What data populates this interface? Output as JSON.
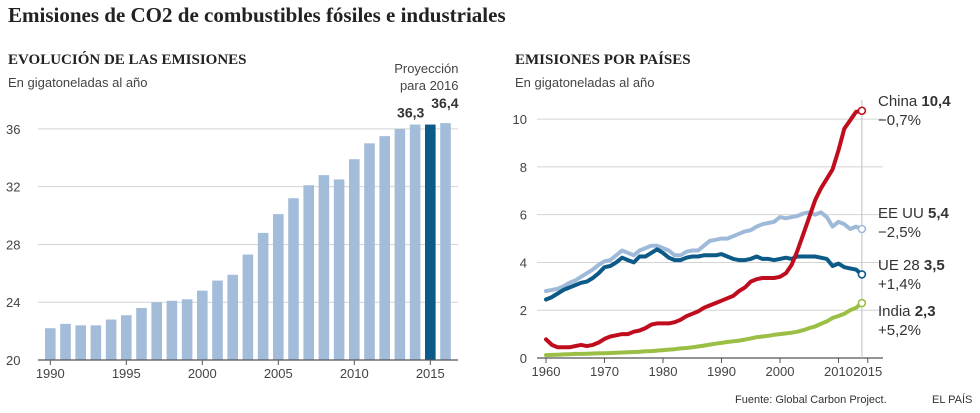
{
  "title": "Emisiones de CO2 de combustibles fósiles e industriales",
  "footer": {
    "source": "Fuente: Global Carbon Project.",
    "brand": "EL PAÍS"
  },
  "colors": {
    "bar": "#a3bcda",
    "bar_highlight": "#0b5a87",
    "grid": "#d4d4d4",
    "axis": "#555555",
    "label": "#444444"
  },
  "chart_data": [
    {
      "type": "bar",
      "title": "EVOLUCIÓN DE LAS EMISIONES",
      "subtitle": "En gigatoneladas al año",
      "x": [
        1990,
        1991,
        1992,
        1993,
        1994,
        1995,
        1996,
        1997,
        1998,
        1999,
        2000,
        2001,
        2002,
        2003,
        2004,
        2005,
        2006,
        2007,
        2008,
        2009,
        2010,
        2011,
        2012,
        2013,
        2014,
        2015,
        2016
      ],
      "values": [
        22.2,
        22.5,
        22.4,
        22.4,
        22.8,
        23.1,
        23.6,
        24.0,
        24.1,
        24.2,
        24.8,
        25.5,
        25.9,
        27.3,
        28.8,
        30.1,
        31.2,
        32.1,
        32.8,
        32.5,
        33.9,
        35.0,
        35.5,
        36.0,
        36.3,
        36.3,
        36.4
      ],
      "highlight_x": 2015,
      "ylim": [
        20,
        38
      ],
      "yticks": [
        20,
        24,
        28,
        32,
        36
      ],
      "xticks": [
        1990,
        1995,
        2000,
        2005,
        2010,
        2015
      ],
      "grid": true,
      "annotations": {
        "value_2015": "36,3",
        "projection_line1": "Proyección",
        "projection_line2": "para 2016",
        "value_2016": "36,4"
      }
    },
    {
      "type": "line",
      "title": "EMISIONES POR PAÍSES",
      "subtitle": "En gigatoneladas al año",
      "x": [
        1960,
        1961,
        1962,
        1963,
        1964,
        1965,
        1966,
        1967,
        1968,
        1969,
        1970,
        1971,
        1972,
        1973,
        1974,
        1975,
        1976,
        1977,
        1978,
        1979,
        1980,
        1981,
        1982,
        1983,
        1984,
        1985,
        1986,
        1987,
        1988,
        1989,
        1990,
        1991,
        1992,
        1993,
        1994,
        1995,
        1996,
        1997,
        1998,
        1999,
        2000,
        2001,
        2002,
        2003,
        2004,
        2005,
        2006,
        2007,
        2008,
        2009,
        2010,
        2011,
        2012,
        2013,
        2014
      ],
      "ylim": [
        0,
        10.8
      ],
      "yticks": [
        0,
        2,
        4,
        6,
        8,
        10
      ],
      "xticks": [
        1960,
        1970,
        1980,
        1990,
        2000,
        2010,
        2015
      ],
      "grid": true,
      "series": [
        {
          "name": "EE UU",
          "value": "5,4",
          "change": "−2,5%",
          "color": "#9fbad8",
          "values": [
            2.8,
            2.85,
            2.9,
            3.0,
            3.15,
            3.25,
            3.4,
            3.55,
            3.7,
            3.9,
            4.05,
            4.1,
            4.3,
            4.5,
            4.4,
            4.3,
            4.5,
            4.6,
            4.7,
            4.7,
            4.6,
            4.5,
            4.3,
            4.3,
            4.45,
            4.5,
            4.5,
            4.7,
            4.9,
            4.95,
            5.0,
            5.0,
            5.1,
            5.2,
            5.3,
            5.35,
            5.5,
            5.6,
            5.65,
            5.7,
            5.9,
            5.85,
            5.9,
            5.95,
            6.05,
            6.1,
            6.0,
            6.1,
            5.9,
            5.5,
            5.7,
            5.6,
            5.4,
            5.5,
            5.4
          ]
        },
        {
          "name": "UE 28",
          "value": "3,5",
          "change": "+1,4%",
          "color": "#0b5a87",
          "values": [
            2.45,
            2.55,
            2.7,
            2.85,
            2.95,
            3.05,
            3.15,
            3.2,
            3.35,
            3.55,
            3.8,
            3.85,
            4.0,
            4.2,
            4.1,
            4.0,
            4.25,
            4.25,
            4.4,
            4.55,
            4.4,
            4.2,
            4.1,
            4.1,
            4.2,
            4.25,
            4.25,
            4.3,
            4.3,
            4.3,
            4.35,
            4.25,
            4.15,
            4.1,
            4.1,
            4.15,
            4.25,
            4.15,
            4.15,
            4.1,
            4.15,
            4.2,
            4.15,
            4.25,
            4.25,
            4.25,
            4.25,
            4.2,
            4.15,
            3.85,
            3.95,
            3.8,
            3.75,
            3.7,
            3.5
          ]
        },
        {
          "name": "China",
          "value": "10,4",
          "change": "−0,7%",
          "color": "#c00d1e",
          "values": [
            0.78,
            0.55,
            0.45,
            0.45,
            0.45,
            0.5,
            0.55,
            0.5,
            0.55,
            0.65,
            0.8,
            0.9,
            0.95,
            1.0,
            1.0,
            1.1,
            1.15,
            1.25,
            1.4,
            1.45,
            1.45,
            1.45,
            1.5,
            1.6,
            1.75,
            1.85,
            1.95,
            2.1,
            2.2,
            2.3,
            2.4,
            2.5,
            2.6,
            2.8,
            2.95,
            3.2,
            3.3,
            3.35,
            3.35,
            3.35,
            3.4,
            3.55,
            3.9,
            4.5,
            5.2,
            5.9,
            6.6,
            7.1,
            7.5,
            7.9,
            8.7,
            9.6,
            9.95,
            10.3,
            10.35
          ]
        },
        {
          "name": "India",
          "value": "2,3",
          "change": "+5,2%",
          "color": "#9bbf45",
          "values": [
            0.12,
            0.13,
            0.14,
            0.15,
            0.16,
            0.17,
            0.17,
            0.18,
            0.19,
            0.2,
            0.2,
            0.21,
            0.22,
            0.23,
            0.24,
            0.25,
            0.26,
            0.28,
            0.29,
            0.31,
            0.33,
            0.35,
            0.37,
            0.4,
            0.42,
            0.45,
            0.48,
            0.52,
            0.56,
            0.6,
            0.63,
            0.67,
            0.7,
            0.73,
            0.77,
            0.82,
            0.87,
            0.9,
            0.93,
            0.97,
            1.0,
            1.03,
            1.06,
            1.1,
            1.17,
            1.25,
            1.32,
            1.43,
            1.53,
            1.68,
            1.76,
            1.85,
            2.0,
            2.1,
            2.3
          ]
        }
      ]
    }
  ]
}
